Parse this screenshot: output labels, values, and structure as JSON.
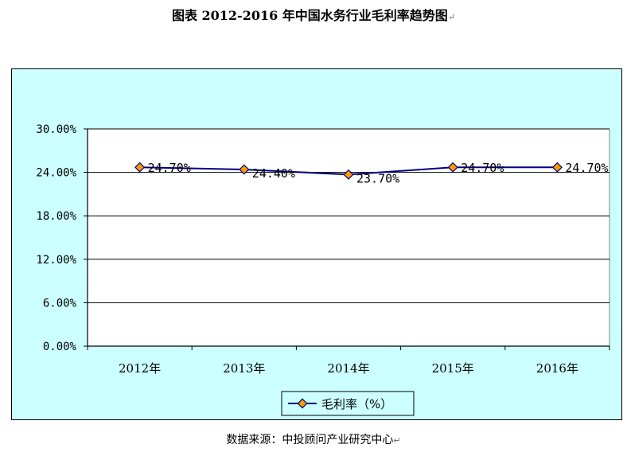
{
  "title": "图表 2012-2016 年中国水务行业毛利率趋势图",
  "paragraph_mark": "↵",
  "source": "数据来源：中投顾问产业研究中心",
  "colors": {
    "line": "#000080",
    "marker_fill": "#ff9900",
    "marker_edge": "#000080",
    "background": "#ccffff",
    "plot_bg": "#ffffff"
  },
  "chart_data": {
    "type": "line",
    "title": "图表 2012-2016 年中国水务行业毛利率趋势图",
    "categories": [
      "2012年",
      "2013年",
      "2014年",
      "2015年",
      "2016年"
    ],
    "series": [
      {
        "name": "毛利率（%）",
        "values": [
          24.7,
          24.4,
          23.7,
          24.7,
          24.7
        ]
      }
    ],
    "data_labels": [
      "24.70%",
      "24.40%",
      "23.70%",
      "24.70%",
      "24.70%"
    ],
    "y_ticks": [
      "0.00%",
      "6.00%",
      "12.00%",
      "18.00%",
      "24.00%",
      "30.00%"
    ],
    "ylim": [
      0,
      30
    ],
    "y_step": 6,
    "grid": true,
    "legend": "bottom-center",
    "xlabel": "",
    "ylabel": ""
  }
}
